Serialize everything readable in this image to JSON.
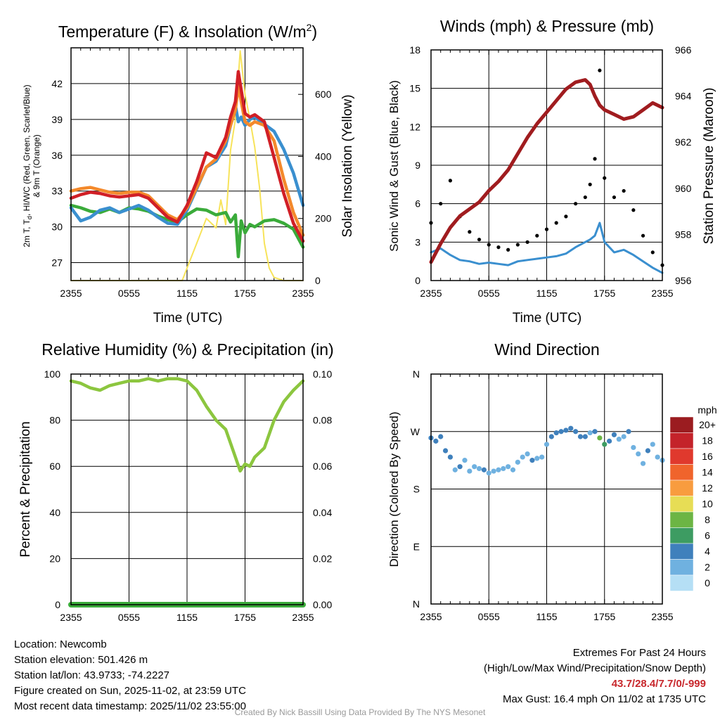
{
  "colors": {
    "temp_red": "#d11f26",
    "temp_orange": "#f4892b",
    "dewpoint_blue": "#3a8fcf",
    "windchill_green": "#3aab3a",
    "insolation_yellow": "#f7e35a",
    "wind_blue": "#3a8fcf",
    "gust_black": "#000000",
    "pressure_maroon": "#a01c1f",
    "rh_green": "#8cc63f",
    "precip_green": "#3aab3a"
  },
  "chart_data": [
    {
      "type": "line",
      "id": "temperature",
      "title": "Temperature (F) & Insolation (W/m",
      "title_sup": "2",
      "title_end": ")",
      "xlabel": "Time (UTC)",
      "ylabel_left_1": "2m T, T",
      "ylabel_left_sub": "d",
      "ylabel_left_2": ", HI/WC (Red, Green, Scarlet/Blue)",
      "ylabel_left_3": "& 9m T (Orange)",
      "ylabel_right": "Solar Insolation (Yellow)",
      "x_ticks": [
        "2355",
        "0555",
        "1155",
        "1755",
        "2355"
      ],
      "x_range": [
        0,
        24
      ],
      "y_left_range": [
        25.5,
        45
      ],
      "y_left_ticks": [
        27,
        30,
        33,
        36,
        39,
        42
      ],
      "y_right_range": [
        0,
        750
      ],
      "y_right_ticks": [
        0,
        200,
        400,
        600
      ],
      "x": [
        0,
        1,
        2,
        3,
        4,
        5,
        6,
        7,
        8,
        9,
        10,
        11,
        12,
        13,
        14,
        15,
        16,
        16.5,
        17,
        17.3,
        17.6,
        18,
        18.5,
        19,
        20,
        21,
        22,
        23,
        24
      ],
      "series": [
        {
          "name": "2m T",
          "color_key": "temp_red",
          "values": [
            32.4,
            32.7,
            32.9,
            32.8,
            32.6,
            32.5,
            32.6,
            32.7,
            32.4,
            31.6,
            30.8,
            30.4,
            31.8,
            33.8,
            36.2,
            35.8,
            37.5,
            39.2,
            40.5,
            43.0,
            41.5,
            39.5,
            39.2,
            39.4,
            38.8,
            35.8,
            32.8,
            30.3,
            28.8
          ]
        },
        {
          "name": "9m T",
          "color_key": "temp_orange",
          "values": [
            33.0,
            33.2,
            33.3,
            33.1,
            32.9,
            32.8,
            32.9,
            32.9,
            32.6,
            31.8,
            31.0,
            30.6,
            31.6,
            33.3,
            35.0,
            35.7,
            37.2,
            38.5,
            39.8,
            41.8,
            40.5,
            38.8,
            38.5,
            38.8,
            38.5,
            37.2,
            34.0,
            31.2,
            29.3
          ]
        },
        {
          "name": "Dewpoint / WC",
          "color_key": "dewpoint_blue",
          "values": [
            31.6,
            30.5,
            30.8,
            31.4,
            31.6,
            31.2,
            31.5,
            31.8,
            31.4,
            30.8,
            30.3,
            30.2,
            31.4,
            33.2,
            35.0,
            35.5,
            36.8,
            38.5,
            40.2,
            38.8,
            39.2,
            38.5,
            39.0,
            39.2,
            38.6,
            38.0,
            36.5,
            34.5,
            31.8
          ]
        },
        {
          "name": "Wind chill",
          "color_key": "windchill_green",
          "values": [
            31.8,
            31.6,
            31.3,
            31.2,
            31.5,
            31.2,
            31.6,
            31.5,
            31.3,
            30.9,
            30.6,
            30.4,
            31.0,
            31.5,
            31.4,
            31.0,
            31.2,
            30.4,
            31.0,
            27.5,
            30.5,
            29.5,
            30.2,
            30.0,
            30.5,
            30.6,
            30.3,
            29.8,
            28.3
          ]
        }
      ],
      "insolation": {
        "name": "Solar Insolation",
        "color_key": "insolation_yellow",
        "x": [
          0,
          8,
          11.5,
          12,
          13,
          14,
          15,
          15.5,
          16,
          16.5,
          17,
          17.5,
          18,
          18.5,
          19,
          19.5,
          20,
          20.5,
          21,
          22,
          24
        ],
        "values": [
          0,
          0,
          0,
          40,
          120,
          200,
          170,
          260,
          180,
          420,
          520,
          740,
          600,
          520,
          430,
          300,
          120,
          40,
          10,
          0,
          0
        ]
      }
    },
    {
      "type": "line_scatter",
      "id": "winds",
      "title": "Winds (mph) & Pressure (mb)",
      "xlabel": "Time (UTC)",
      "ylabel_left": "Sonic Wind & Gust (Blue, Black)",
      "ylabel_right": "Station Pressure (Maroon)",
      "x_ticks": [
        "2355",
        "0555",
        "1155",
        "1755",
        "2355"
      ],
      "x_range": [
        0,
        24
      ],
      "y_left_range": [
        0,
        18
      ],
      "y_left_ticks": [
        0,
        3,
        6,
        9,
        12,
        15,
        18
      ],
      "y_right_range": [
        956,
        966
      ],
      "y_right_ticks": [
        956,
        958,
        960,
        962,
        964,
        966
      ],
      "x": [
        0,
        1,
        2,
        3,
        4,
        5,
        6,
        7,
        8,
        9,
        10,
        11,
        12,
        13,
        14,
        15,
        16,
        16.5,
        17,
        17.5,
        18,
        19,
        20,
        21,
        22,
        23,
        24
      ],
      "sonic_wind": {
        "color_key": "wind_blue",
        "values": [
          2.2,
          2.5,
          2.0,
          1.6,
          1.5,
          1.3,
          1.4,
          1.3,
          1.2,
          1.5,
          1.6,
          1.7,
          1.8,
          1.9,
          2.1,
          2.6,
          3.0,
          3.2,
          3.5,
          4.5,
          3.0,
          2.2,
          2.4,
          2.0,
          1.5,
          1.0,
          0.6
        ]
      },
      "gust": {
        "color_key": "gust_black",
        "values": [
          4.5,
          6.0,
          7.8,
          5.0,
          3.8,
          3.2,
          2.8,
          2.6,
          2.4,
          2.8,
          3.0,
          3.5,
          4.0,
          4.5,
          5.0,
          6.0,
          6.5,
          7.5,
          9.5,
          16.4,
          8.0,
          6.5,
          7.0,
          5.5,
          3.5,
          2.2,
          1.2
        ]
      },
      "pressure": {
        "color_key": "pressure_maroon",
        "values": [
          956.8,
          957.6,
          958.3,
          958.8,
          959.1,
          959.4,
          959.9,
          960.3,
          960.8,
          961.5,
          962.2,
          962.8,
          963.3,
          963.8,
          964.3,
          964.6,
          964.7,
          964.5,
          964.0,
          963.6,
          963.4,
          963.2,
          963.0,
          963.1,
          963.4,
          963.7,
          963.5
        ]
      }
    },
    {
      "type": "line",
      "id": "humidity",
      "title": "Relative Humidity (%) & Precipitation (in)",
      "ylabel_left": "Percent & Precipitation",
      "x_ticks": [
        "2355",
        "0555",
        "1155",
        "1755",
        "2355"
      ],
      "x_range": [
        0,
        24
      ],
      "y_left_range": [
        0,
        100
      ],
      "y_left_ticks": [
        0,
        20,
        40,
        60,
        80,
        100
      ],
      "y_right_range": [
        0,
        0.1
      ],
      "y_right_ticks": [
        "0.00",
        "0.02",
        "0.04",
        "0.06",
        "0.08",
        "0.10"
      ],
      "x": [
        0,
        1,
        2,
        3,
        4,
        5,
        6,
        7,
        8,
        9,
        10,
        11,
        12,
        13,
        14,
        15,
        16,
        16.5,
        17,
        17.5,
        18,
        18.5,
        19,
        20,
        21,
        22,
        23,
        24
      ],
      "rh": {
        "color_key": "rh_green",
        "values": [
          97,
          96,
          94,
          93,
          95,
          96,
          97,
          97,
          98,
          97,
          98,
          98,
          97,
          93,
          86,
          80,
          76,
          70,
          64,
          58,
          61,
          60,
          64,
          68,
          80,
          88,
          93,
          97
        ]
      },
      "precip": {
        "color_key": "precip_green",
        "values": [
          0,
          0,
          0,
          0,
          0,
          0,
          0,
          0,
          0,
          0,
          0,
          0,
          0,
          0,
          0,
          0,
          0,
          0,
          0,
          0,
          0,
          0,
          0,
          0,
          0,
          0,
          0,
          0
        ]
      }
    },
    {
      "type": "scatter",
      "id": "wind_direction",
      "title": "Wind Direction",
      "ylabel_left": "Direction (Colored By Speed)",
      "x_ticks": [
        "2355",
        "0555",
        "1155",
        "1755",
        "2355"
      ],
      "x_range": [
        0,
        24
      ],
      "y_range": [
        0,
        360
      ],
      "y_ticks": [
        {
          "value": 0,
          "label": "N"
        },
        {
          "value": 90,
          "label": "E"
        },
        {
          "value": 180,
          "label": "S"
        },
        {
          "value": 270,
          "label": "W"
        },
        {
          "value": 360,
          "label": "N"
        }
      ],
      "x": [
        0,
        0.5,
        1,
        1.5,
        2,
        2.5,
        3,
        3.5,
        4,
        4.5,
        5,
        5.5,
        6,
        6.5,
        7,
        7.5,
        8,
        8.5,
        9,
        9.5,
        10,
        10.5,
        11,
        11.5,
        12,
        12.5,
        13,
        13.5,
        14,
        14.5,
        15,
        15.5,
        16,
        16.5,
        17,
        17.5,
        18,
        18.5,
        19,
        19.5,
        20,
        20.5,
        21,
        21.5,
        22,
        22.5,
        23,
        23.5,
        24
      ],
      "values": [
        260,
        255,
        262,
        240,
        230,
        210,
        215,
        225,
        208,
        215,
        212,
        210,
        205,
        208,
        210,
        212,
        215,
        210,
        222,
        230,
        235,
        225,
        228,
        230,
        250,
        262,
        268,
        270,
        272,
        275,
        270,
        262,
        262,
        268,
        270,
        260,
        250,
        255,
        265,
        258,
        262,
        270,
        245,
        235,
        220,
        240,
        250,
        230,
        225
      ],
      "speeds": [
        3,
        3,
        4,
        4,
        3,
        2,
        4,
        2,
        2,
        1,
        2,
        3,
        2,
        1,
        1,
        2,
        1,
        2,
        2,
        1,
        2,
        3,
        2,
        2,
        2,
        3,
        3,
        3,
        3,
        4,
        3,
        4,
        3,
        2,
        4,
        7,
        6,
        4,
        3,
        2,
        2,
        3,
        2,
        2,
        1,
        3,
        2,
        1,
        1
      ],
      "legend": {
        "title": "mph",
        "labels": [
          "20+",
          "18",
          "16",
          "14",
          "12",
          "10",
          "8",
          "6",
          "4",
          "2",
          "0"
        ],
        "colors": [
          "#9b1c20",
          "#c4232a",
          "#e0392d",
          "#f0642c",
          "#f89c3f",
          "#e7dd55",
          "#6cb544",
          "#3d9c62",
          "#3f80bc",
          "#6fb1e0",
          "#b5dff5"
        ]
      }
    }
  ],
  "footer": {
    "location": "Location: Newcomb",
    "elevation": "Station elevation: 501.426 m",
    "latlon": "Station lat/lon: 43.9733; -74.2227",
    "created": "Figure created on Sun, 2025-11-02, at 23:59 UTC",
    "recent": "Most recent data timestamp: 2025/11/02 23:55:00",
    "extremes_title": "Extremes For Past 24 Hours",
    "extremes_fields": "(High/Low/Max Wind/Precipitation/Snow Depth)",
    "extremes_values": "43.7/28.4/7.7/0/-999",
    "max_gust": "Max Gust: 16.4 mph On 11/02 at 1735 UTC",
    "credit": "Created By Nick Bassill Using Data Provided By The NYS Mesonet"
  }
}
